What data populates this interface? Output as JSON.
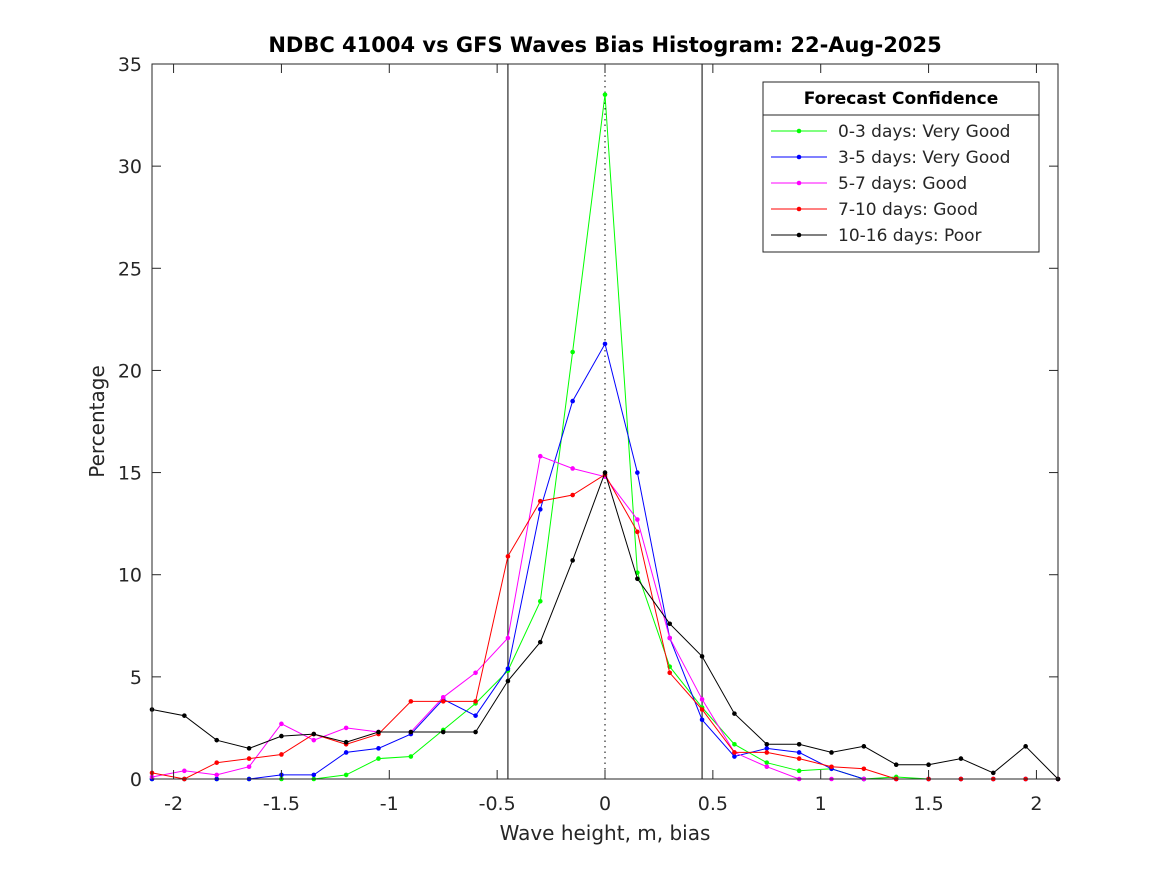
{
  "chart_data": {
    "type": "line",
    "title": "NDBC 41004 vs GFS Waves Bias Histogram: 22-Aug-2025",
    "xlabel": "Wave height, m, bias",
    "ylabel": "Percentage",
    "xlim": [
      -2.1,
      2.1
    ],
    "ylim": [
      0,
      35
    ],
    "xticks": [
      -2,
      -1.5,
      -1,
      -0.5,
      0,
      0.5,
      1,
      1.5,
      2
    ],
    "xtick_labels": [
      "-2",
      "-1.5",
      "-1",
      "-0.5",
      "0",
      "0.5",
      "1",
      "1.5",
      "2"
    ],
    "yticks": [
      0,
      5,
      10,
      15,
      20,
      25,
      30,
      35
    ],
    "ytick_labels": [
      "0",
      "5",
      "10",
      "15",
      "20",
      "25",
      "30",
      "35"
    ],
    "vertical_lines": [
      {
        "x": -0.45,
        "style": "solid"
      },
      {
        "x": 0,
        "style": "dotted"
      },
      {
        "x": 0.45,
        "style": "solid"
      }
    ],
    "legend_title": "Forecast Confidence",
    "legend_position": "top-right",
    "x": [
      -2.1,
      -1.95,
      -1.8,
      -1.65,
      -1.5,
      -1.35,
      -1.2,
      -1.05,
      -0.9,
      -0.75,
      -0.6,
      -0.45,
      -0.3,
      -0.15,
      0,
      0.15,
      0.3,
      0.45,
      0.6,
      0.75,
      0.9,
      1.05,
      1.2,
      1.35,
      1.5,
      1.65,
      1.8,
      1.95,
      2.1
    ],
    "series": [
      {
        "name": "0-3 days: Very Good",
        "color": "#00ff00",
        "values": [
          0,
          0,
          0,
          0,
          0,
          0,
          0.2,
          1.0,
          1.1,
          2.4,
          3.7,
          5.3,
          8.7,
          20.9,
          33.5,
          10.1,
          5.5,
          3.5,
          1.7,
          0.8,
          0.4,
          0.5,
          0,
          0.1,
          0,
          0,
          0,
          0,
          0
        ]
      },
      {
        "name": "3-5 days: Very Good",
        "color": "#0000ff",
        "values": [
          0,
          0,
          0,
          0,
          0.2,
          0.2,
          1.3,
          1.5,
          2.2,
          3.9,
          3.1,
          5.4,
          13.2,
          18.5,
          21.3,
          15.0,
          6.9,
          2.9,
          1.1,
          1.5,
          1.3,
          0.5,
          0,
          0,
          0,
          0,
          0,
          0,
          0
        ]
      },
      {
        "name": "5-7 days: Good",
        "color": "#ff00ff",
        "values": [
          0.1,
          0.4,
          0.2,
          0.6,
          2.7,
          1.9,
          2.5,
          2.3,
          2.3,
          4.0,
          5.2,
          6.9,
          15.8,
          15.2,
          14.8,
          12.7,
          6.9,
          3.9,
          1.3,
          0.6,
          0,
          0,
          0,
          0,
          0,
          0,
          0,
          0,
          0
        ]
      },
      {
        "name": "7-10 days: Good",
        "color": "#ff0000",
        "values": [
          0.3,
          0,
          0.8,
          1.0,
          1.2,
          2.2,
          1.7,
          2.2,
          3.8,
          3.8,
          3.8,
          10.9,
          13.6,
          13.9,
          14.9,
          12.1,
          5.2,
          3.4,
          1.3,
          1.3,
          1.0,
          0.6,
          0.5,
          0,
          0,
          0,
          0,
          0,
          0
        ]
      },
      {
        "name": "10-16 days: Poor",
        "color": "#000000",
        "values": [
          3.4,
          3.1,
          1.9,
          1.5,
          2.1,
          2.2,
          1.8,
          2.3,
          2.3,
          2.3,
          2.3,
          4.8,
          6.7,
          10.7,
          15.0,
          9.8,
          7.6,
          6.0,
          3.2,
          1.7,
          1.7,
          1.3,
          1.6,
          0.7,
          0.7,
          1.0,
          0.3,
          1.6,
          0
        ]
      }
    ]
  }
}
